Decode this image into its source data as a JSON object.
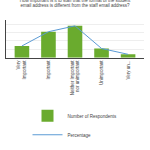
{
  "chart_data": {
    "type": "bar",
    "title": "How important is it to staff that the format of the student\nemail address is different from the staff email address?",
    "categories": [
      "Very\nImportant",
      "Important",
      "Neither Important\nnor unimportant",
      "Unimportant",
      "Very un..."
    ],
    "series": [
      {
        "name": "Number of Respondents",
        "type": "bar",
        "color": "#6aab2e",
        "values": [
          14,
          31,
          38,
          11,
          4
        ]
      },
      {
        "name": "Percentage",
        "type": "line",
        "color": "#5b9bd5",
        "values": [
          14,
          31,
          38,
          11,
          4
        ]
      }
    ],
    "ylim": [
      0,
      45
    ],
    "yticks": [
      0,
      10,
      20,
      30,
      40
    ],
    "grid": true,
    "legend": "bottom",
    "tick_labels": "x"
  }
}
